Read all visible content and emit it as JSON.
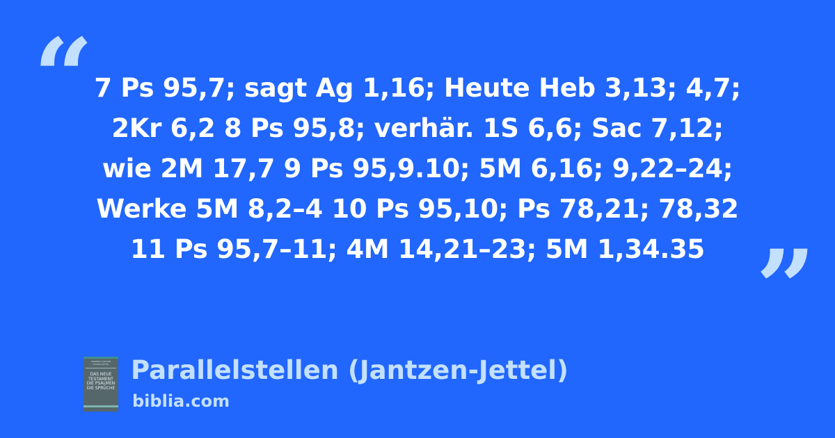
{
  "quote": {
    "open_mark": "“",
    "close_mark": "”",
    "lines": [
      "7 Ps 95,7; sagt Ag 1,16; Heute Heb 3,13; 4,7;",
      "2Kr 6,2 8 Ps 95,8; verhär. 1S 6,6; Sac 7,12;",
      "wie 2M 17,7 9 Ps 95,9.10; 5M 6,16; 9,22–24;",
      "Werke 5M 8,2–4 10 Ps 95,10; Ps 78,21; 78,32",
      "11 Ps 95,7–11; 4M 14,21–23; 5M 1,34.35"
    ]
  },
  "source": {
    "title": "Parallelstellen (Jantzen-Jettel)",
    "site": "biblia.com",
    "cover": {
      "authors": "HERBERT JANTZEN / THOMAS JETTEL",
      "text": "DAS NEUE TESTAMENT DIE PSALMEN DIE SPRÜCHE"
    }
  },
  "colors": {
    "background": "#2166fd",
    "accent": "#c3e0ff",
    "text": "#ffffff"
  }
}
